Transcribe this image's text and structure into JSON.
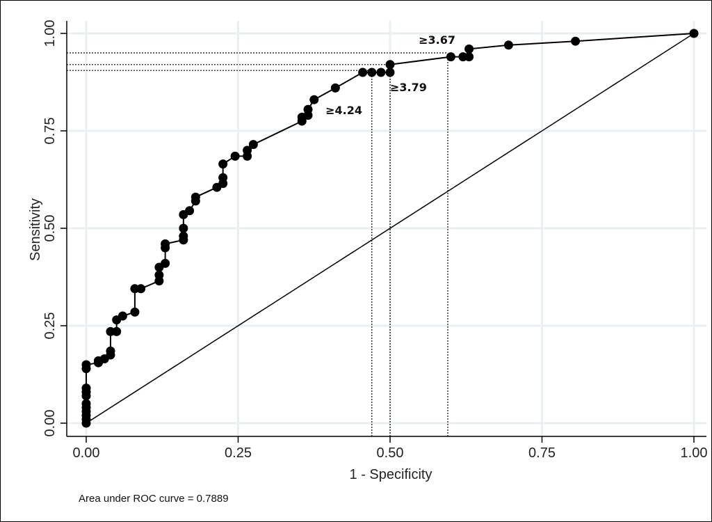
{
  "chart_data": {
    "type": "line",
    "xlabel": "1 - Specificity",
    "ylabel": "Sensitivity",
    "xlim": [
      0,
      1
    ],
    "ylim": [
      0,
      1
    ],
    "grid": true,
    "x_ticks": [
      "0.00",
      "0.25",
      "0.50",
      "0.75",
      "1.00"
    ],
    "y_ticks": [
      "0.00",
      "0.25",
      "0.50",
      "0.75",
      "1.00"
    ],
    "tick_values": [
      0,
      0.25,
      0.5,
      0.75,
      1
    ],
    "series": [
      {
        "points": [
          [
            0,
            0
          ],
          [
            0,
            0.01
          ],
          [
            0,
            0.02
          ],
          [
            0,
            0.03
          ],
          [
            0,
            0.04
          ],
          [
            0,
            0.05
          ],
          [
            0,
            0.07
          ],
          [
            0,
            0.08
          ],
          [
            0,
            0.09
          ],
          [
            0,
            0.14
          ],
          [
            0,
            0.15
          ],
          [
            0.02,
            0.155
          ],
          [
            0.02,
            0.16
          ],
          [
            0.03,
            0.165
          ],
          [
            0.04,
            0.175
          ],
          [
            0.04,
            0.185
          ],
          [
            0.04,
            0.235
          ],
          [
            0.05,
            0.235
          ],
          [
            0.05,
            0.265
          ],
          [
            0.06,
            0.275
          ],
          [
            0.08,
            0.285
          ],
          [
            0.08,
            0.345
          ],
          [
            0.09,
            0.345
          ],
          [
            0.12,
            0.365
          ],
          [
            0.12,
            0.38
          ],
          [
            0.12,
            0.4
          ],
          [
            0.13,
            0.41
          ],
          [
            0.13,
            0.45
          ],
          [
            0.13,
            0.46
          ],
          [
            0.16,
            0.47
          ],
          [
            0.16,
            0.48
          ],
          [
            0.16,
            0.5
          ],
          [
            0.16,
            0.535
          ],
          [
            0.17,
            0.545
          ],
          [
            0.18,
            0.57
          ],
          [
            0.18,
            0.58
          ],
          [
            0.215,
            0.605
          ],
          [
            0.225,
            0.615
          ],
          [
            0.225,
            0.63
          ],
          [
            0.225,
            0.665
          ],
          [
            0.245,
            0.685
          ],
          [
            0.265,
            0.685
          ],
          [
            0.265,
            0.7
          ],
          [
            0.275,
            0.715
          ],
          [
            0.355,
            0.775
          ],
          [
            0.355,
            0.785
          ],
          [
            0.365,
            0.79
          ],
          [
            0.365,
            0.805
          ],
          [
            0.375,
            0.83
          ],
          [
            0.41,
            0.86
          ],
          [
            0.455,
            0.9
          ],
          [
            0.47,
            0.9
          ],
          [
            0.485,
            0.9
          ],
          [
            0.5,
            0.9
          ],
          [
            0.5,
            0.92
          ],
          [
            0.6,
            0.94
          ],
          [
            0.62,
            0.94
          ],
          [
            0.63,
            0.94
          ],
          [
            0.63,
            0.96
          ],
          [
            0.695,
            0.97
          ],
          [
            0.805,
            0.98
          ],
          [
            1,
            1
          ]
        ]
      },
      {
        "points": [
          [
            0,
            0
          ],
          [
            1,
            1
          ]
        ]
      }
    ],
    "cutoffs": [
      {
        "label": "≥4.24",
        "x": 0.47,
        "y": 0.905
      },
      {
        "label": "≥3.79",
        "x": 0.5,
        "y": 0.92
      },
      {
        "label": "≥3.67",
        "x": 0.595,
        "y": 0.95
      }
    ],
    "footnote": "Area under ROC curve = 0.7889"
  }
}
